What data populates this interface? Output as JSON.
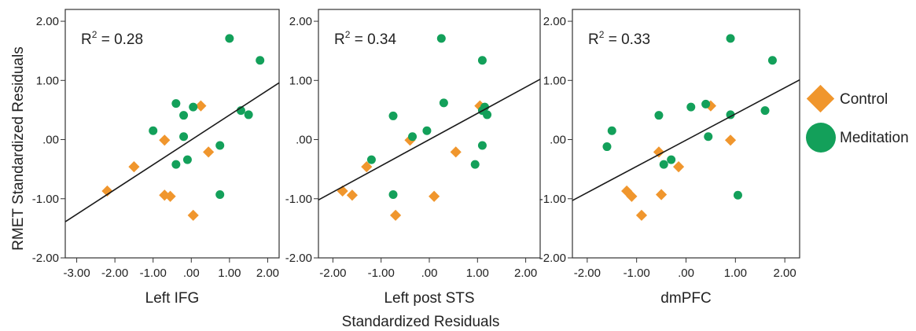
{
  "y_axis_label": "RMET Standardized Residuals",
  "shared_x_label": "Standardized Residuals",
  "legend": [
    {
      "label": "Control",
      "marker": "diamond",
      "color": "#f0962d"
    },
    {
      "label": "Meditation",
      "marker": "circle",
      "color": "#13a05a"
    }
  ],
  "chart_data": [
    {
      "type": "scatter",
      "xlabel": "Left IFG",
      "r2": {
        "prefix": "R",
        "sup": "2",
        "value": " = 0.28"
      },
      "xlim": [
        -3.3,
        2.3
      ],
      "ylim": [
        -2.0,
        2.2
      ],
      "xticks": [
        -3.0,
        -2.0,
        -1.0,
        0.0,
        1.0,
        2.0
      ],
      "xtick_labels": [
        "-3.00",
        "-2.00",
        "-1.00",
        ".00",
        "1.00",
        "2.00"
      ],
      "yticks": [
        -2.0,
        -1.0,
        0.0,
        1.0,
        2.0
      ],
      "ytick_labels": [
        "-2.00",
        "-1.00",
        ".00",
        "1.00",
        "2.00"
      ],
      "fit_line": {
        "x": [
          -3.3,
          2.3
        ],
        "y": [
          -1.39,
          0.96
        ]
      },
      "series": [
        {
          "name": "Control",
          "points": [
            [
              -2.2,
              -0.87
            ],
            [
              -1.5,
              -0.46
            ],
            [
              -0.7,
              -0.01
            ],
            [
              -0.7,
              -0.94
            ],
            [
              -0.55,
              -0.96
            ],
            [
              0.25,
              0.57
            ],
            [
              0.45,
              -0.21
            ],
            [
              0.05,
              -1.28
            ]
          ]
        },
        {
          "name": "Meditation",
          "points": [
            [
              -1.0,
              0.15
            ],
            [
              -0.4,
              0.61
            ],
            [
              -0.2,
              0.41
            ],
            [
              0.05,
              0.55
            ],
            [
              -0.2,
              0.05
            ],
            [
              -0.4,
              -0.42
            ],
            [
              -0.1,
              -0.34
            ],
            [
              0.75,
              -0.1
            ],
            [
              0.75,
              -0.93
            ],
            [
              1.3,
              0.49
            ],
            [
              1.5,
              0.42
            ],
            [
              1.0,
              1.71
            ],
            [
              1.8,
              1.34
            ]
          ]
        }
      ]
    },
    {
      "type": "scatter",
      "xlabel": "Left post STS",
      "r2": {
        "prefix": "R",
        "sup": "2",
        "value": " = 0.34"
      },
      "xlim": [
        -2.3,
        2.3
      ],
      "ylim": [
        -2.0,
        2.2
      ],
      "xticks": [
        -2.0,
        -1.0,
        0.0,
        1.0,
        2.0
      ],
      "xtick_labels": [
        "-2.00",
        "-1.00",
        ".00",
        "1.00",
        "2.00"
      ],
      "yticks": [
        -2.0,
        -1.0,
        0.0,
        1.0,
        2.0
      ],
      "ytick_labels": [
        "-2.00",
        "-1.00",
        ".00",
        "1.00",
        "2.00"
      ],
      "fit_line": {
        "x": [
          -2.3,
          2.3
        ],
        "y": [
          -1.02,
          1.02
        ]
      },
      "series": [
        {
          "name": "Control",
          "points": [
            [
              -1.8,
              -0.87
            ],
            [
              -1.6,
              -0.94
            ],
            [
              -1.3,
              -0.46
            ],
            [
              -0.4,
              -0.01
            ],
            [
              0.55,
              -0.21
            ],
            [
              1.05,
              0.57
            ],
            [
              0.1,
              -0.96
            ],
            [
              -0.7,
              -1.28
            ]
          ]
        },
        {
          "name": "Meditation",
          "points": [
            [
              -1.2,
              -0.34
            ],
            [
              -0.75,
              0.4
            ],
            [
              -0.35,
              0.05
            ],
            [
              -0.05,
              0.15
            ],
            [
              0.3,
              0.62
            ],
            [
              0.25,
              1.71
            ],
            [
              1.1,
              1.34
            ],
            [
              1.15,
              0.55
            ],
            [
              1.2,
              0.42
            ],
            [
              1.1,
              0.49
            ],
            [
              0.95,
              -0.42
            ],
            [
              1.1,
              -0.1
            ],
            [
              -0.75,
              -0.93
            ]
          ]
        }
      ]
    },
    {
      "type": "scatter",
      "xlabel": "dmPFC",
      "r2": {
        "prefix": "R",
        "sup": "2",
        "value": " = 0.33"
      },
      "xlim": [
        -2.3,
        2.3
      ],
      "ylim": [
        -2.0,
        2.2
      ],
      "xticks": [
        -2.0,
        -1.0,
        0.0,
        1.0,
        2.0
      ],
      "xtick_labels": [
        "-2.00",
        "-1.00",
        ".00",
        "1.00",
        "2.00"
      ],
      "yticks": [
        -2.0,
        -1.0,
        0.0,
        1.0,
        2.0
      ],
      "ytick_labels": [
        "-2.00",
        "-1.00",
        ".00",
        "1.00",
        "2.00"
      ],
      "fit_line": {
        "x": [
          -2.3,
          2.3
        ],
        "y": [
          -1.03,
          1.01
        ]
      },
      "series": [
        {
          "name": "Control",
          "points": [
            [
              -1.2,
              -0.87
            ],
            [
              -1.1,
              -0.96
            ],
            [
              -0.9,
              -1.28
            ],
            [
              -0.55,
              -0.21
            ],
            [
              -0.5,
              -0.93
            ],
            [
              -0.15,
              -0.46
            ],
            [
              0.5,
              0.57
            ],
            [
              0.9,
              -0.01
            ]
          ]
        },
        {
          "name": "Meditation",
          "points": [
            [
              -1.6,
              -0.12
            ],
            [
              -1.5,
              0.15
            ],
            [
              -0.55,
              0.41
            ],
            [
              -0.45,
              -0.42
            ],
            [
              -0.3,
              -0.34
            ],
            [
              0.1,
              0.55
            ],
            [
              0.4,
              0.6
            ],
            [
              0.45,
              0.05
            ],
            [
              0.9,
              0.42
            ],
            [
              0.9,
              1.71
            ],
            [
              1.05,
              -0.94
            ],
            [
              1.6,
              0.49
            ],
            [
              1.75,
              1.34
            ]
          ]
        }
      ]
    }
  ]
}
